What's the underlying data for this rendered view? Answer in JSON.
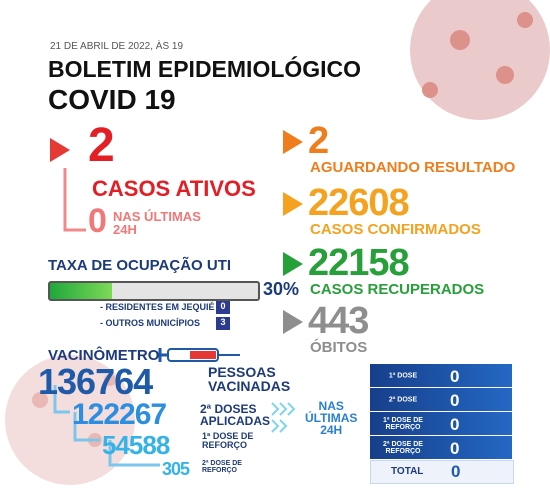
{
  "header": {
    "date": "21 DE ABRIL DE 2022, ÀS 19",
    "title": "BOLETIM EPIDEMIOLÓGICO",
    "subtitle": "COVID 19"
  },
  "active": {
    "value": 2,
    "label": "CASOS ATIVOS",
    "recent_value": 0,
    "recent_label": [
      "NAS ÚLTIMAS",
      "24H"
    ]
  },
  "occupancy": {
    "title": "TAXA DE OCUPAÇÃO UTI",
    "value": 30,
    "label": "30%",
    "rows": [
      {
        "label": "- RESIDENTES EM JEQUIÉ",
        "value": 0
      },
      {
        "label": "- OUTROS MUNICÍPIOS",
        "value": 3
      }
    ]
  },
  "stats": [
    {
      "value": 2,
      "label": "AGUARDANDO RESULTADO"
    },
    {
      "value": 22608,
      "label": "CASOS CONFIRMADOS"
    },
    {
      "value": 22158,
      "label": "CASOS RECUPERADOS"
    },
    {
      "value": 443,
      "label": "ÓBITOS"
    }
  ],
  "vaccine": {
    "title": "VACINÔMETRO",
    "items": [
      {
        "value": 136764,
        "label": [
          "PESSOAS",
          "VACINADAS"
        ]
      },
      {
        "value": 122267,
        "label": [
          "2ª DOSES",
          "APLICADAS"
        ]
      },
      {
        "value": 54588,
        "label": [
          "1ª DOSE DE",
          "REFORÇO"
        ]
      },
      {
        "value": 305,
        "label": [
          "2ª DOSE DE",
          "REFORÇO"
        ]
      }
    ],
    "recent_label": [
      "NAS",
      "ÚLTIMAS",
      "24H"
    ],
    "table": [
      {
        "label": [
          "1ª DOSE"
        ],
        "value": 0
      },
      {
        "label": [
          "2ª DOSE"
        ],
        "value": 0
      },
      {
        "label": [
          "1ª DOSE DE",
          "REFORÇO"
        ],
        "value": 0
      },
      {
        "label": [
          "2ª DOSE DE",
          "REFORÇO"
        ],
        "value": 0
      }
    ],
    "total_label": "TOTAL",
    "total_value": 0
  }
}
